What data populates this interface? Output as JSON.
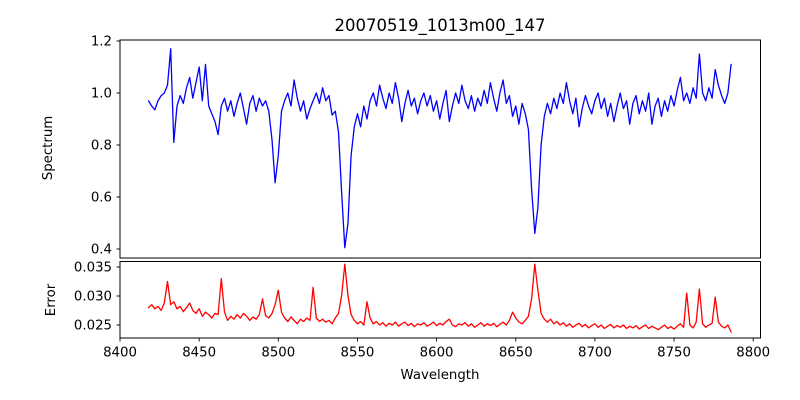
{
  "colors": {
    "spectrum_line": "#0000ff",
    "error_line": "#ff0000",
    "axis": "#000000",
    "background": "#ffffff",
    "text": "#000000"
  },
  "chart_data": [
    {
      "type": "line",
      "panel": "spectrum",
      "title": "20070519_1013m00_147",
      "ylabel": "Spectrum",
      "legend": "none",
      "grid": false,
      "color": "#0000ff",
      "xlim": [
        8400,
        8804.6
      ],
      "ylim": [
        0.3654,
        1.2038
      ],
      "yticks": [
        1.2,
        1.0,
        0.8,
        0.6,
        0.4
      ],
      "ytick_labels": [
        "1.2",
        "1.0",
        "0.8",
        "0.6",
        "0.4"
      ],
      "x_start": 8418,
      "x_step": 2,
      "values": [
        0.97,
        0.95,
        0.935,
        0.97,
        0.99,
        1.0,
        1.03,
        1.17,
        0.81,
        0.95,
        0.99,
        0.96,
        1.02,
        1.06,
        0.98,
        1.04,
        1.1,
        0.97,
        1.11,
        0.95,
        0.92,
        0.89,
        0.84,
        0.95,
        0.98,
        0.93,
        0.97,
        0.91,
        0.96,
        1.0,
        0.94,
        0.88,
        0.96,
        0.99,
        0.93,
        0.98,
        0.95,
        0.97,
        0.93,
        0.82,
        0.655,
        0.76,
        0.93,
        0.97,
        1.0,
        0.95,
        1.05,
        0.98,
        0.93,
        0.97,
        0.9,
        0.94,
        0.97,
        1.0,
        0.96,
        1.02,
        0.97,
        0.99,
        0.915,
        0.93,
        0.85,
        0.62,
        0.405,
        0.5,
        0.76,
        0.87,
        0.92,
        0.87,
        0.95,
        0.9,
        0.97,
        1.0,
        0.95,
        1.03,
        0.98,
        0.94,
        1.0,
        0.96,
        1.04,
        0.98,
        0.89,
        0.96,
        1.01,
        0.95,
        0.98,
        0.92,
        0.97,
        1.0,
        0.95,
        0.99,
        0.93,
        0.97,
        0.9,
        0.96,
        1.01,
        0.89,
        0.95,
        1.0,
        0.96,
        1.03,
        0.97,
        0.94,
        0.99,
        0.93,
        0.98,
        0.95,
        1.01,
        0.96,
        1.04,
        0.98,
        0.93,
        1.0,
        1.05,
        0.96,
        0.99,
        0.91,
        0.95,
        0.88,
        0.96,
        0.92,
        0.86,
        0.63,
        0.46,
        0.56,
        0.8,
        0.91,
        0.96,
        0.92,
        0.98,
        0.94,
        1.0,
        0.96,
        1.04,
        0.97,
        0.92,
        0.98,
        0.87,
        0.94,
        0.99,
        0.95,
        0.92,
        0.97,
        1.0,
        0.94,
        0.98,
        0.91,
        0.96,
        0.89,
        0.95,
        1.0,
        0.94,
        0.97,
        0.88,
        0.96,
        0.99,
        0.92,
        0.97,
        0.93,
        1.0,
        0.88,
        0.95,
        0.98,
        0.91,
        0.97,
        0.93,
        0.99,
        0.95,
        1.01,
        1.06,
        0.97,
        1.0,
        0.96,
        1.02,
        0.98,
        1.15,
        1.0,
        0.97,
        1.02,
        0.98,
        1.09,
        1.03,
        0.99,
        0.96,
        1.0,
        1.11
      ]
    },
    {
      "type": "line",
      "panel": "error",
      "ylabel": "Error",
      "xlabel": "Wavelength",
      "legend": "none",
      "grid": false,
      "color": "#ff0000",
      "xlim": [
        8400,
        8804.6
      ],
      "ylim": [
        0.02276,
        0.03595
      ],
      "yticks": [
        0.035,
        0.03,
        0.025
      ],
      "ytick_labels": [
        "0.035",
        "0.030",
        "0.025"
      ],
      "xticks": [
        8400,
        8450,
        8500,
        8550,
        8600,
        8650,
        8700,
        8750,
        8800
      ],
      "xtick_labels": [
        "8400",
        "8450",
        "8500",
        "8550",
        "8600",
        "8650",
        "8700",
        "8750",
        "8800"
      ],
      "x_start": 8418,
      "x_step": 2,
      "values": [
        0.028,
        0.0285,
        0.0278,
        0.0282,
        0.0275,
        0.0288,
        0.0325,
        0.0285,
        0.029,
        0.0278,
        0.0282,
        0.0273,
        0.028,
        0.0288,
        0.0275,
        0.027,
        0.0278,
        0.0265,
        0.0272,
        0.0268,
        0.0262,
        0.027,
        0.0268,
        0.033,
        0.0272,
        0.0258,
        0.0265,
        0.026,
        0.0268,
        0.0262,
        0.027,
        0.0265,
        0.0258,
        0.0264,
        0.026,
        0.0268,
        0.0295,
        0.0266,
        0.0262,
        0.027,
        0.0285,
        0.031,
        0.0272,
        0.0262,
        0.0256,
        0.0264,
        0.0258,
        0.0252,
        0.026,
        0.0256,
        0.0262,
        0.0258,
        0.0315,
        0.0262,
        0.0256,
        0.026,
        0.0255,
        0.0258,
        0.0252,
        0.0262,
        0.027,
        0.03,
        0.0355,
        0.03,
        0.0268,
        0.0258,
        0.0252,
        0.0256,
        0.025,
        0.029,
        0.0262,
        0.0252,
        0.0256,
        0.025,
        0.0254,
        0.0248,
        0.0253,
        0.025,
        0.0255,
        0.0248,
        0.0252,
        0.0255,
        0.0249,
        0.0253,
        0.0247,
        0.0252,
        0.025,
        0.0254,
        0.0248,
        0.0251,
        0.0255,
        0.0249,
        0.0253,
        0.025,
        0.0256,
        0.026,
        0.025,
        0.0247,
        0.0252,
        0.025,
        0.0254,
        0.0248,
        0.0252,
        0.0246,
        0.025,
        0.0254,
        0.0248,
        0.0252,
        0.0249,
        0.0253,
        0.0247,
        0.0251,
        0.0255,
        0.025,
        0.0258,
        0.0272,
        0.0262,
        0.0255,
        0.0252,
        0.0258,
        0.0265,
        0.0295,
        0.0355,
        0.031,
        0.027,
        0.026,
        0.0255,
        0.026,
        0.0252,
        0.0256,
        0.025,
        0.0254,
        0.0248,
        0.0252,
        0.0246,
        0.025,
        0.0253,
        0.0247,
        0.0251,
        0.0245,
        0.0249,
        0.0252,
        0.0246,
        0.025,
        0.0244,
        0.0248,
        0.0251,
        0.0245,
        0.0249,
        0.0246,
        0.025,
        0.0244,
        0.0248,
        0.0245,
        0.0249,
        0.0243,
        0.0247,
        0.025,
        0.0244,
        0.0248,
        0.0245,
        0.0242,
        0.0246,
        0.025,
        0.0244,
        0.0247,
        0.0243,
        0.0248,
        0.0252,
        0.0246,
        0.0305,
        0.025,
        0.0245,
        0.0255,
        0.0312,
        0.0252,
        0.0246,
        0.025,
        0.0253,
        0.0298,
        0.0255,
        0.0248,
        0.0245,
        0.025,
        0.0238
      ]
    }
  ]
}
